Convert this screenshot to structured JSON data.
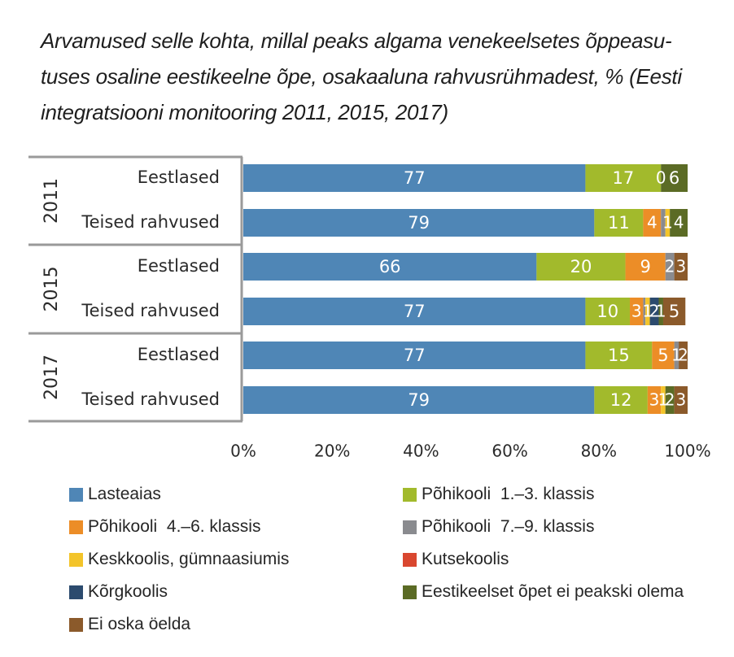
{
  "chart_data": {
    "type": "bar",
    "orientation": "horizontal",
    "stacked": true,
    "title": "Arvamused selle kohta, millal peaks algama venekeelsetes õppeasu-tuses osaline eestikeelne õpe, osakaaluna rahvusrühmadest, % (Eesti integratsiooni monitooring 2011, 2015, 2017)",
    "title_lines": [
      "Arvamused selle kohta, millal peaks algama venekeelsetes õppeasu-",
      "tuses osaline eestikeelne õpe, osakaaluna rahvusrühmadest, % (Eesti",
      "integratsiooni monitooring 2011, 2015, 2017)"
    ],
    "xlabel": "",
    "ylabel": "",
    "xlim": [
      0,
      100
    ],
    "x_ticks": [
      "0%",
      "20%",
      "40%",
      "60%",
      "80%",
      "100%"
    ],
    "grid": false,
    "legend_position": "bottom",
    "groups": [
      {
        "label": "2011",
        "categories": [
          "Eestlased",
          "Teised rahvused"
        ]
      },
      {
        "label": "2015",
        "categories": [
          "Eestlased",
          "Teised rahvused"
        ]
      },
      {
        "label": "2017",
        "categories": [
          "Eestlased",
          "Teised rahvused"
        ]
      }
    ],
    "series": [
      {
        "name": "Lasteaias",
        "color": "#4f86b6",
        "values": [
          77,
          79,
          66,
          77,
          77,
          79
        ]
      },
      {
        "name": "Põhikooli  1.–3. klassis",
        "color": "#a2ba2c",
        "values": [
          17,
          11,
          20,
          10,
          15,
          12
        ]
      },
      {
        "name": "Põhikooli  4.–6. klassis",
        "color": "#ec8d27",
        "values": [
          0,
          4,
          9,
          3,
          5,
          3
        ]
      },
      {
        "name": "Põhikooli  7.–9. klassis",
        "color": "#8a8b8f",
        "values": [
          0,
          1,
          2,
          0.5,
          1,
          0
        ]
      },
      {
        "name": "Keskkoolis, gümnaasiumis",
        "color": "#f3c42a",
        "values": [
          0,
          1,
          0,
          1,
          0,
          1
        ]
      },
      {
        "name": "Kutsekoolis",
        "color": "#d9472f",
        "values": [
          0,
          0,
          0,
          0,
          0,
          0
        ]
      },
      {
        "name": "Kõrgkoolis",
        "color": "#2c4b6e",
        "values": [
          0,
          0,
          0,
          2,
          0,
          0
        ]
      },
      {
        "name": "Eestikeelset õpet ei peakski olema",
        "color": "#5b6b25",
        "values": [
          6,
          4,
          0,
          1,
          0,
          2
        ]
      },
      {
        "name": "Ei oska öelda",
        "color": "#8b5a2b",
        "values": [
          0,
          0,
          3,
          5,
          2,
          3
        ]
      }
    ],
    "data_labels": [
      [
        "77",
        "17",
        "0",
        "6"
      ],
      [
        "79",
        "11",
        "4",
        "1",
        "4"
      ],
      [
        "66",
        "20",
        "9",
        "2",
        "3"
      ],
      [
        "77",
        "10",
        "3",
        "1",
        "2",
        "1",
        "5"
      ],
      [
        "77",
        "15",
        "5",
        "1",
        "2"
      ],
      [
        "79",
        "12",
        "3",
        "1",
        "2",
        "3"
      ]
    ],
    "label_map": [
      [
        [
          0,
          "77"
        ],
        [
          1,
          "17"
        ],
        [
          6,
          "0"
        ],
        [
          7,
          "6"
        ]
      ],
      [
        [
          0,
          "79"
        ],
        [
          1,
          "11"
        ],
        [
          2,
          "4"
        ],
        [
          4,
          "1"
        ],
        [
          7,
          "4"
        ]
      ],
      [
        [
          0,
          "66"
        ],
        [
          1,
          "20"
        ],
        [
          2,
          "9"
        ],
        [
          3,
          "2"
        ],
        [
          8,
          "3"
        ]
      ],
      [
        [
          0,
          "77"
        ],
        [
          1,
          "10"
        ],
        [
          2,
          "3"
        ],
        [
          4,
          "1"
        ],
        [
          6,
          "2"
        ],
        [
          7,
          "1"
        ],
        [
          8,
          "5"
        ]
      ],
      [
        [
          0,
          "77"
        ],
        [
          1,
          "15"
        ],
        [
          2,
          "5"
        ],
        [
          3,
          "1"
        ],
        [
          8,
          "2"
        ]
      ],
      [
        [
          0,
          "79"
        ],
        [
          1,
          "12"
        ],
        [
          2,
          "3"
        ],
        [
          4,
          "1"
        ],
        [
          7,
          "2"
        ],
        [
          8,
          "3"
        ]
      ]
    ]
  }
}
